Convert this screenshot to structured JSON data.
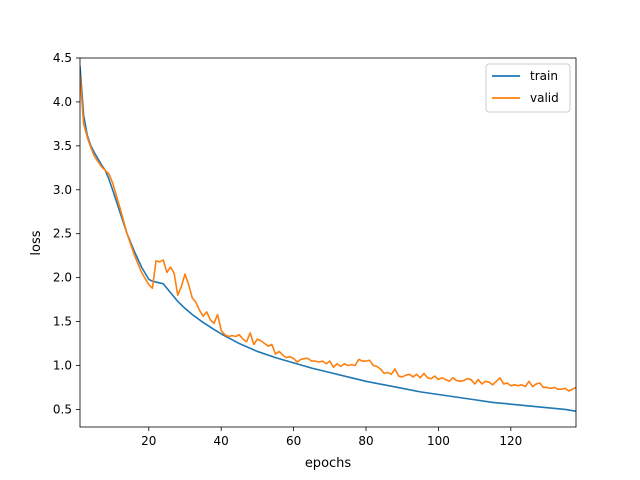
{
  "chart_data": {
    "type": "line",
    "xlabel": "epochs",
    "ylabel": "loss",
    "xlim": [
      1,
      138
    ],
    "ylim": [
      0.3,
      4.5
    ],
    "xticks": [
      20,
      40,
      60,
      80,
      100,
      120
    ],
    "yticks": [
      0.5,
      1.0,
      1.5,
      2.0,
      2.5,
      3.0,
      3.5,
      4.0,
      4.5
    ],
    "grid": false,
    "legend": "top-right",
    "series": [
      {
        "name": "train",
        "color": "#1f77b4",
        "x": [
          1,
          2,
          3,
          4,
          5,
          6,
          7,
          8,
          9,
          10,
          12,
          14,
          16,
          18,
          20,
          21,
          22,
          24,
          26,
          28,
          30,
          32,
          35,
          38,
          40,
          45,
          50,
          55,
          60,
          65,
          70,
          75,
          80,
          85,
          90,
          95,
          100,
          105,
          110,
          115,
          120,
          125,
          130,
          135,
          138
        ],
        "y": [
          4.4,
          3.85,
          3.62,
          3.5,
          3.42,
          3.35,
          3.28,
          3.22,
          3.12,
          3.0,
          2.75,
          2.5,
          2.3,
          2.12,
          1.98,
          1.96,
          1.95,
          1.93,
          1.83,
          1.73,
          1.65,
          1.58,
          1.49,
          1.41,
          1.36,
          1.25,
          1.16,
          1.09,
          1.03,
          0.97,
          0.92,
          0.87,
          0.82,
          0.78,
          0.74,
          0.7,
          0.67,
          0.64,
          0.61,
          0.58,
          0.56,
          0.54,
          0.52,
          0.5,
          0.48
        ]
      },
      {
        "name": "valid",
        "color": "#ff7f0e",
        "x": [
          1,
          2,
          3,
          4,
          5,
          6,
          7,
          8,
          9,
          10,
          12,
          14,
          16,
          18,
          20,
          21,
          22,
          23,
          24,
          25,
          26,
          27,
          28,
          29,
          30,
          31,
          32,
          33,
          34,
          35,
          36,
          37,
          38,
          39,
          40,
          41,
          42,
          43,
          44,
          45,
          46,
          47,
          48,
          49,
          50,
          51,
          52,
          53,
          54,
          55,
          56,
          57,
          58,
          59,
          60,
          61,
          62,
          63,
          64,
          65,
          66,
          67,
          68,
          69,
          70,
          71,
          72,
          73,
          74,
          75,
          76,
          77,
          78,
          79,
          80,
          81,
          82,
          83,
          84,
          85,
          86,
          87,
          88,
          89,
          90,
          91,
          92,
          93,
          94,
          95,
          96,
          97,
          98,
          99,
          100,
          101,
          102,
          103,
          104,
          105,
          106,
          107,
          108,
          109,
          110,
          111,
          112,
          113,
          114,
          115,
          116,
          117,
          118,
          119,
          120,
          121,
          122,
          123,
          124,
          125,
          126,
          127,
          128,
          129,
          130,
          131,
          132,
          133,
          134,
          135,
          136,
          137,
          138
        ],
        "y": [
          4.3,
          3.75,
          3.6,
          3.48,
          3.38,
          3.32,
          3.26,
          3.22,
          3.18,
          3.08,
          2.8,
          2.5,
          2.26,
          2.06,
          1.92,
          1.88,
          2.19,
          2.18,
          2.2,
          2.06,
          2.12,
          2.05,
          1.8,
          1.9,
          2.04,
          1.92,
          1.77,
          1.72,
          1.63,
          1.56,
          1.61,
          1.52,
          1.48,
          1.58,
          1.4,
          1.35,
          1.33,
          1.34,
          1.33,
          1.35,
          1.3,
          1.27,
          1.37,
          1.24,
          1.3,
          1.28,
          1.25,
          1.22,
          1.24,
          1.13,
          1.16,
          1.12,
          1.09,
          1.1,
          1.08,
          1.04,
          1.07,
          1.08,
          1.08,
          1.05,
          1.05,
          1.04,
          1.05,
          1.02,
          1.05,
          0.98,
          1.02,
          0.99,
          1.02,
          1.0,
          1.01,
          1.0,
          1.07,
          1.05,
          1.05,
          1.06,
          1.0,
          0.99,
          0.96,
          0.91,
          0.92,
          0.9,
          0.96,
          0.88,
          0.87,
          0.89,
          0.9,
          0.87,
          0.9,
          0.86,
          0.91,
          0.86,
          0.85,
          0.88,
          0.84,
          0.86,
          0.84,
          0.82,
          0.86,
          0.83,
          0.82,
          0.83,
          0.85,
          0.84,
          0.79,
          0.84,
          0.79,
          0.82,
          0.81,
          0.78,
          0.82,
          0.86,
          0.79,
          0.8,
          0.77,
          0.78,
          0.77,
          0.78,
          0.76,
          0.82,
          0.76,
          0.79,
          0.8,
          0.75,
          0.75,
          0.74,
          0.75,
          0.73,
          0.73,
          0.74,
          0.71,
          0.73,
          0.75
        ]
      }
    ]
  }
}
